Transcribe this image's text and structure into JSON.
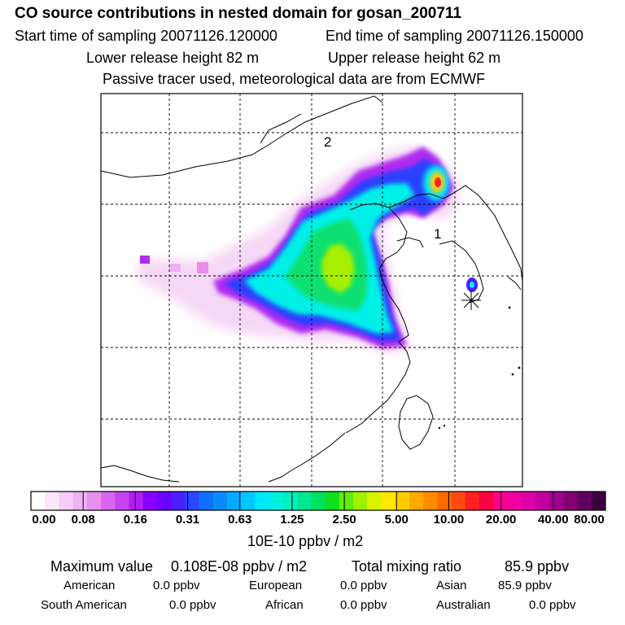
{
  "header": {
    "title": "CO  source contributions in nested domain for gosan_200711",
    "start_time": "Start time of sampling 20071126.120000",
    "end_time": "End time of sampling 20071126.150000",
    "lower_height": "Lower release height   82 m",
    "upper_height": "Upper release height   62 m",
    "tracer_note": "Passive tracer used, meteorological data are from ECMWF"
  },
  "map": {
    "region_labels": [
      "2",
      "1"
    ],
    "receptor_marker": "asterisk-marker"
  },
  "colorbar": {
    "unit": "10E-10 ppbv / m2",
    "tick_labels": [
      "0.00",
      "0.08",
      "0.16",
      "0.31",
      "0.63",
      "1.25",
      "2.50",
      "5.00",
      "10.00",
      "20.00",
      "40.00",
      "80.00"
    ],
    "colors": [
      "#ffffff",
      "#fbe7fb",
      "#f5cdf6",
      "#efb2f2",
      "#e98ff0",
      "#d866f0",
      "#c544f0",
      "#b01ef2",
      "#8a00ff",
      "#6a00ff",
      "#4a20ff",
      "#2a48ff",
      "#1070ff",
      "#0a8cff",
      "#00aaff",
      "#00c8ff",
      "#00e8ff",
      "#00f0e0",
      "#00f0c0",
      "#00e890",
      "#00e060",
      "#10e020",
      "#60ec10",
      "#a0f000",
      "#d8f400",
      "#ffe800",
      "#ffcc00",
      "#ffaa00",
      "#ff8a00",
      "#ff6a00",
      "#ff4a10",
      "#ff2020",
      "#ff0040",
      "#ff0090",
      "#f000a0",
      "#dd00a8",
      "#c000a0",
      "#a00090",
      "#800070",
      "#600060",
      "#400040"
    ]
  },
  "summary": {
    "max_label": "Maximum value",
    "max_value": "0.108E-08 ppbv / m2",
    "total_label": "Total mixing ratio",
    "total_value": "85.9 ppbv",
    "regions": [
      {
        "name": "American",
        "value": "0.0 ppbv"
      },
      {
        "name": "European",
        "value": "0.0 ppbv"
      },
      {
        "name": "Asian",
        "value": "85.9 ppbv"
      },
      {
        "name": "South American",
        "value": "0.0 ppbv"
      },
      {
        "name": "African",
        "value": "0.0 ppbv"
      },
      {
        "name": "Australian",
        "value": "0.0 ppbv"
      }
    ]
  }
}
